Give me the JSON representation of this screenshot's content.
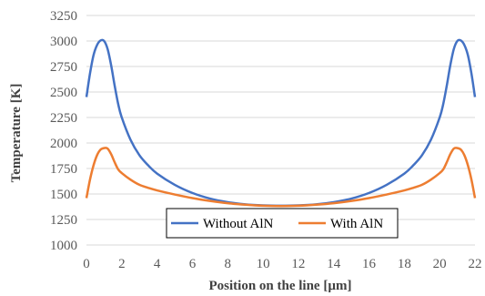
{
  "chart_data": {
    "type": "line",
    "title": "",
    "xlabel": "Position on the line [µm]",
    "ylabel": "Temperature [K]",
    "xlim": [
      0,
      22
    ],
    "ylim": [
      1000,
      3250
    ],
    "xticks": [
      0,
      2,
      4,
      6,
      8,
      10,
      12,
      14,
      16,
      18,
      20,
      22
    ],
    "yticks": [
      1000,
      1250,
      1500,
      1750,
      2000,
      2250,
      2500,
      2750,
      3000,
      3250
    ],
    "grid": "horizontal",
    "legend_position": "bottom-center",
    "series": [
      {
        "name": "Without AlN",
        "color": "#4472C4",
        "points": [
          [
            0,
            2450
          ],
          [
            0.2,
            2680
          ],
          [
            0.4,
            2860
          ],
          [
            0.6,
            2960
          ],
          [
            0.8,
            3005
          ],
          [
            1.0,
            3000
          ],
          [
            1.2,
            2920
          ],
          [
            1.4,
            2760
          ],
          [
            1.6,
            2560
          ],
          [
            1.8,
            2380
          ],
          [
            2.0,
            2250
          ],
          [
            2.5,
            2030
          ],
          [
            3.0,
            1880
          ],
          [
            3.5,
            1780
          ],
          [
            4.0,
            1700
          ],
          [
            5.0,
            1590
          ],
          [
            6.0,
            1510
          ],
          [
            7.0,
            1455
          ],
          [
            8.0,
            1420
          ],
          [
            9.0,
            1398
          ],
          [
            10.0,
            1388
          ],
          [
            11.0,
            1385
          ],
          [
            12.0,
            1388
          ],
          [
            13.0,
            1398
          ],
          [
            14.0,
            1420
          ],
          [
            15.0,
            1455
          ],
          [
            16.0,
            1510
          ],
          [
            17.0,
            1590
          ],
          [
            18.0,
            1700
          ],
          [
            18.5,
            1780
          ],
          [
            19.0,
            1880
          ],
          [
            19.5,
            2030
          ],
          [
            20.0,
            2250
          ],
          [
            20.2,
            2380
          ],
          [
            20.4,
            2560
          ],
          [
            20.6,
            2760
          ],
          [
            20.8,
            2920
          ],
          [
            21.0,
            3000
          ],
          [
            21.2,
            3005
          ],
          [
            21.4,
            2960
          ],
          [
            21.6,
            2860
          ],
          [
            21.8,
            2680
          ],
          [
            22.0,
            2450
          ]
        ]
      },
      {
        "name": "With AlN",
        "color": "#ED7D31",
        "points": [
          [
            0,
            1460
          ],
          [
            0.2,
            1640
          ],
          [
            0.4,
            1780
          ],
          [
            0.6,
            1880
          ],
          [
            0.8,
            1935
          ],
          [
            1.0,
            1950
          ],
          [
            1.2,
            1945
          ],
          [
            1.4,
            1890
          ],
          [
            1.6,
            1810
          ],
          [
            1.8,
            1740
          ],
          [
            2.0,
            1705
          ],
          [
            2.5,
            1640
          ],
          [
            3.0,
            1590
          ],
          [
            3.5,
            1560
          ],
          [
            4.0,
            1535
          ],
          [
            5.0,
            1495
          ],
          [
            6.0,
            1460
          ],
          [
            7.0,
            1432
          ],
          [
            8.0,
            1410
          ],
          [
            9.0,
            1395
          ],
          [
            10.0,
            1385
          ],
          [
            11.0,
            1382
          ],
          [
            12.0,
            1385
          ],
          [
            13.0,
            1395
          ],
          [
            14.0,
            1410
          ],
          [
            15.0,
            1432
          ],
          [
            16.0,
            1460
          ],
          [
            17.0,
            1495
          ],
          [
            18.0,
            1535
          ],
          [
            18.5,
            1560
          ],
          [
            19.0,
            1590
          ],
          [
            19.5,
            1640
          ],
          [
            20.0,
            1705
          ],
          [
            20.2,
            1740
          ],
          [
            20.4,
            1810
          ],
          [
            20.6,
            1890
          ],
          [
            20.8,
            1945
          ],
          [
            21.0,
            1950
          ],
          [
            21.2,
            1935
          ],
          [
            21.4,
            1880
          ],
          [
            21.6,
            1780
          ],
          [
            21.8,
            1640
          ],
          [
            22.0,
            1460
          ]
        ]
      }
    ]
  }
}
